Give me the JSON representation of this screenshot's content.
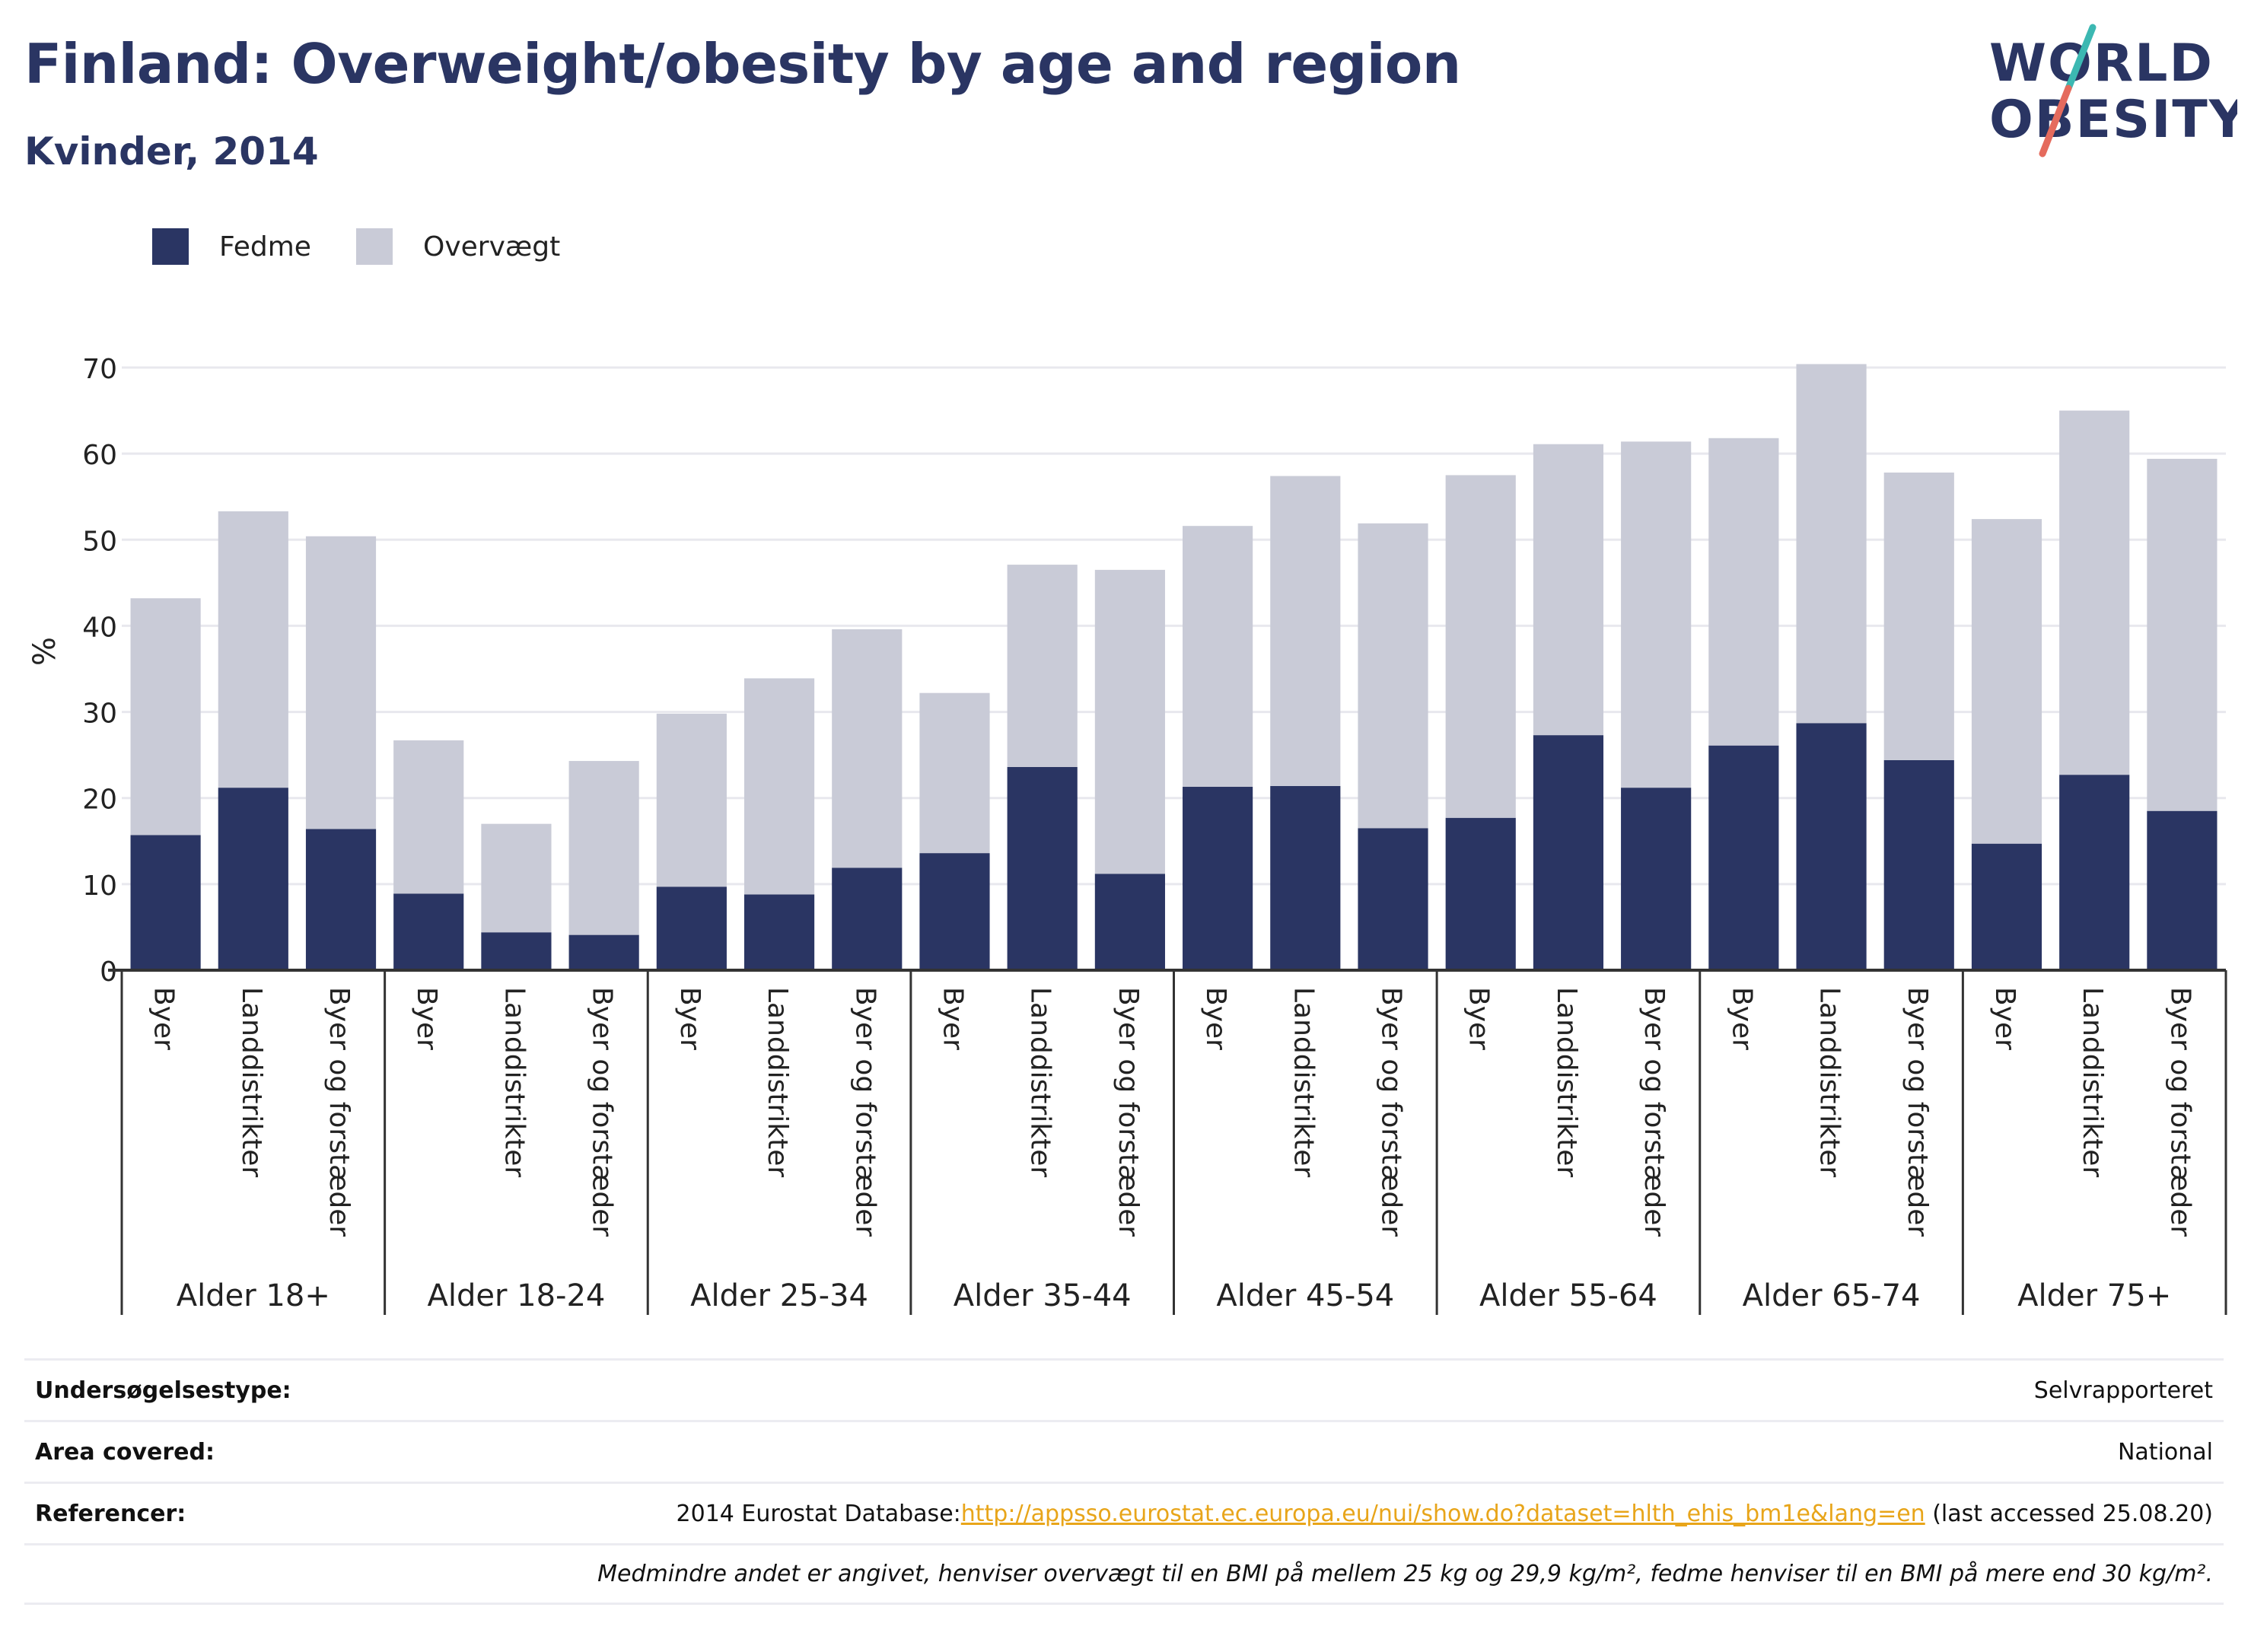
{
  "header": {
    "title": "Finland: Overweight/obesity by age and region",
    "subtitle": "Kvinder, 2014"
  },
  "logo": {
    "line1": "WORLD",
    "line2": "OBESITY",
    "colors": {
      "text": "#2a3563",
      "slash_teal": "#3cb8b2",
      "slash_coral": "#e56b5d"
    }
  },
  "colors": {
    "fedme": "#2a3563",
    "overvaegt": "#c9cbd7",
    "grid": "#e8e8ee",
    "axis": "#333333",
    "link": "#e8a51a"
  },
  "chart_data": {
    "type": "bar",
    "stacked": true,
    "title": "",
    "ylabel": "%",
    "xlabel": "",
    "ylim": [
      0,
      70
    ],
    "yticks": [
      0,
      10,
      20,
      30,
      40,
      50,
      60,
      70
    ],
    "grid": true,
    "legend": {
      "placement": "top-left",
      "items": [
        "Fedme",
        "Overvægt"
      ]
    },
    "groups": [
      {
        "label": "Alder 18+",
        "categories": [
          "Byer",
          "Landdistrikter",
          "Byer og forstæder"
        ]
      },
      {
        "label": "Alder 18-24",
        "categories": [
          "Byer",
          "Landdistrikter",
          "Byer og forstæder"
        ]
      },
      {
        "label": "Alder 25-34",
        "categories": [
          "Byer",
          "Landdistrikter",
          "Byer og forstæder"
        ]
      },
      {
        "label": "Alder 35-44",
        "categories": [
          "Byer",
          "Landdistrikter",
          "Byer og forstæder"
        ]
      },
      {
        "label": "Alder 45-54",
        "categories": [
          "Byer",
          "Landdistrikter",
          "Byer og forstæder"
        ]
      },
      {
        "label": "Alder 55-64",
        "categories": [
          "Byer",
          "Landdistrikter",
          "Byer og forstæder"
        ]
      },
      {
        "label": "Alder 65-74",
        "categories": [
          "Byer",
          "Landdistrikter",
          "Byer og forstæder"
        ]
      },
      {
        "label": "Alder 75+",
        "categories": [
          "Byer",
          "Landdistrikter",
          "Byer og forstæder"
        ]
      }
    ],
    "series": [
      {
        "name": "Fedme",
        "values": [
          15.7,
          21.2,
          16.4,
          8.9,
          4.4,
          4.1,
          9.7,
          8.8,
          11.9,
          13.6,
          23.6,
          11.2,
          21.3,
          21.4,
          16.5,
          17.7,
          27.3,
          21.2,
          26.1,
          28.7,
          24.4,
          14.7,
          22.7,
          18.5
        ]
      },
      {
        "name": "Overvægt",
        "values": [
          27.5,
          32.1,
          34.0,
          17.8,
          12.6,
          20.2,
          20.1,
          25.1,
          27.7,
          18.6,
          23.5,
          35.3,
          30.3,
          36.0,
          35.4,
          39.8,
          33.8,
          40.2,
          35.7,
          41.7,
          33.4,
          37.7,
          42.3,
          40.9
        ]
      }
    ]
  },
  "info": {
    "rows": [
      {
        "label": "Undersøgelsestype:",
        "value": "Selvrapporteret"
      },
      {
        "label": "Area covered:",
        "value": "National"
      },
      {
        "label": "Referencer:",
        "prefix": "2014 Eurostat Database:",
        "link": "http://appsso.eurostat.ec.europa.eu/nui/show.do?dataset=hlth_ehis_bm1e&lang=en",
        "suffix": " (last accessed 25.08.20)"
      }
    ],
    "note": "Medmindre andet er angivet, henviser overvægt til en BMI på mellem 25 kg og 29,9 kg/m², fedme henviser til en BMI på mere end 30 kg/m²."
  }
}
